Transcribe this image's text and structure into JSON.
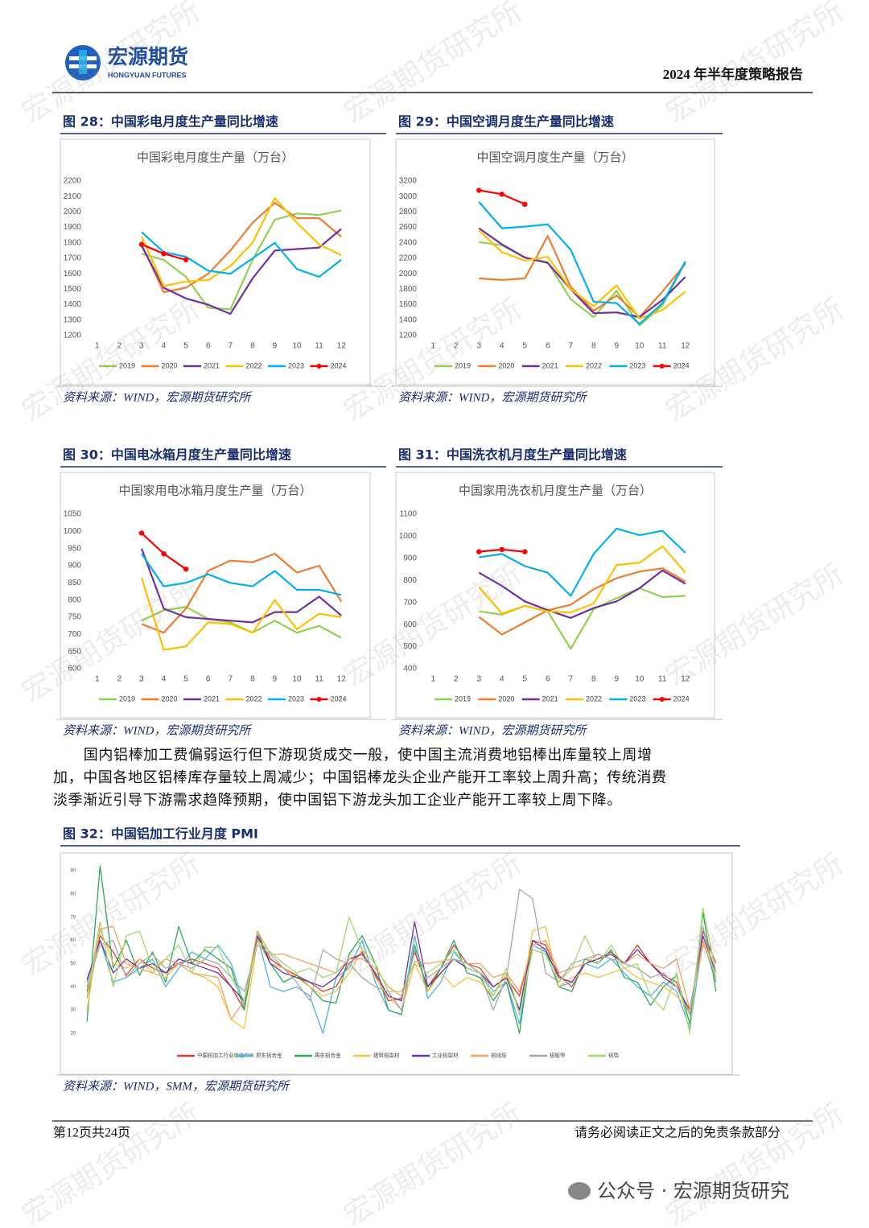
{
  "header": {
    "logo_text": "宏源期货",
    "logo_sub": "HONGYUAN FUTURES",
    "title": "2024 年半年度策略报告"
  },
  "watermark": "宏源期货研究所",
  "paragraph": "国内铝棒加工费偏弱运行但下游现货成交一般，使中国主流消费地铝棒出库量较上周增加，中国各地区铝棒库存量较上周减少；中国铝棒龙头企业产能开工率较上周升高；传统消费淡季渐近引导下游需求趋降预期，使中国铝下游龙头加工企业产能开工率较上周下降。",
  "footer": {
    "page": "第12页共24页",
    "disclaimer": "请务必阅读正文之后的免责条款部分",
    "wechat": "公众号 · 宏源期货研究"
  },
  "chart_data": [
    {
      "type": "line",
      "caption": "图 28：中国彩电月度生产量同比增速",
      "title": "中国彩电月度生产量（万台）",
      "source": "资料来源：WIND，宏源期货研究所",
      "categories": [
        "1",
        "2",
        "3",
        "4",
        "5",
        "6",
        "7",
        "8",
        "9",
        "10",
        "11",
        "12"
      ],
      "ylim": [
        1200,
        2200
      ],
      "yticks": [
        1200,
        1300,
        1400,
        1500,
        1600,
        1700,
        1800,
        1900,
        2000,
        2100,
        2200
      ],
      "series": [
        {
          "name": "2019",
          "color": "#92d050",
          "values": [
            null,
            null,
            1730,
            1690,
            1580,
            1380,
            1370,
            1690,
            1950,
            1990,
            1980,
            2010
          ]
        },
        {
          "name": "2020",
          "color": "#ed7d31",
          "values": [
            null,
            null,
            1790,
            1480,
            1510,
            1600,
            1750,
            1930,
            2060,
            1960,
            1960,
            1840
          ]
        },
        {
          "name": "2021",
          "color": "#7030a0",
          "values": [
            null,
            null,
            1780,
            1510,
            1440,
            1400,
            1340,
            1570,
            1750,
            1760,
            1770,
            1890
          ]
        },
        {
          "name": "2022",
          "color": "#ffc000",
          "values": [
            null,
            null,
            1840,
            1520,
            1550,
            1560,
            1650,
            1800,
            2090,
            1930,
            1790,
            1720
          ]
        },
        {
          "name": "2023",
          "color": "#00b0f0",
          "values": [
            null,
            null,
            1870,
            1740,
            1710,
            1620,
            1600,
            1700,
            1800,
            1630,
            1580,
            1690
          ]
        },
        {
          "name": "2024",
          "color": "#ff0000",
          "marker": true,
          "values": [
            null,
            null,
            1790,
            1730,
            1690,
            null,
            null,
            null,
            null,
            null,
            null,
            null
          ]
        }
      ]
    },
    {
      "type": "line",
      "caption": "图 29：中国空调月度生产量同比增速",
      "title": "中国空调月度生产量（万台）",
      "source": "资料来源：WIND，宏源期货研究所",
      "categories": [
        "1",
        "2",
        "3",
        "4",
        "5",
        "6",
        "7",
        "8",
        "9",
        "10",
        "11",
        "12"
      ],
      "ylim": [
        1200,
        3200
      ],
      "yticks": [
        1200,
        1400,
        1600,
        1800,
        2000,
        2200,
        2400,
        2600,
        2800,
        3000,
        3200
      ],
      "series": [
        {
          "name": "2019",
          "color": "#92d050",
          "values": [
            null,
            null,
            2410,
            2370,
            2210,
            2150,
            1670,
            1440,
            1780,
            1330,
            1590,
            2150
          ]
        },
        {
          "name": "2020",
          "color": "#ed7d31",
          "values": [
            null,
            null,
            1940,
            1920,
            1940,
            2490,
            1830,
            1520,
            1720,
            1440,
            1770,
            2130
          ]
        },
        {
          "name": "2021",
          "color": "#7030a0",
          "values": [
            null,
            null,
            2590,
            2380,
            2210,
            2140,
            1800,
            1490,
            1500,
            1440,
            1660,
            1960
          ]
        },
        {
          "name": "2022",
          "color": "#ffc000",
          "values": [
            null,
            null,
            2560,
            2280,
            2170,
            2220,
            1800,
            1580,
            1850,
            1420,
            1530,
            1770
          ]
        },
        {
          "name": "2023",
          "color": "#00b0f0",
          "values": [
            null,
            null,
            2930,
            2590,
            2610,
            2640,
            2310,
            1640,
            1620,
            1350,
            1620,
            2160
          ]
        },
        {
          "name": "2024",
          "color": "#ff0000",
          "marker": true,
          "values": [
            null,
            null,
            3080,
            3030,
            2900,
            null,
            null,
            null,
            null,
            null,
            null,
            null
          ]
        }
      ]
    },
    {
      "type": "line",
      "caption": "图 30：中国电冰箱月度生产量同比增速",
      "title": "中国家用电冰箱月度生产量（万台）",
      "source": "资料来源：WIND，宏源期货研究所",
      "categories": [
        "1",
        "2",
        "3",
        "4",
        "5",
        "6",
        "7",
        "8",
        "9",
        "10",
        "11",
        "12"
      ],
      "ylim": [
        600,
        1050
      ],
      "yticks": [
        600,
        650,
        700,
        750,
        800,
        850,
        900,
        950,
        1000,
        1050
      ],
      "series": [
        {
          "name": "2019",
          "color": "#92d050",
          "values": [
            null,
            null,
            740,
            770,
            780,
            745,
            735,
            705,
            740,
            705,
            725,
            690
          ]
        },
        {
          "name": "2020",
          "color": "#ed7d31",
          "values": [
            null,
            null,
            730,
            705,
            775,
            885,
            915,
            910,
            935,
            880,
            900,
            795
          ]
        },
        {
          "name": "2021",
          "color": "#7030a0",
          "values": [
            null,
            null,
            950,
            775,
            750,
            745,
            740,
            735,
            765,
            765,
            810,
            755
          ]
        },
        {
          "name": "2022",
          "color": "#ffc000",
          "values": [
            null,
            null,
            865,
            655,
            665,
            735,
            730,
            705,
            800,
            715,
            760,
            750
          ]
        },
        {
          "name": "2023",
          "color": "#00b0f0",
          "values": [
            null,
            null,
            935,
            840,
            850,
            875,
            850,
            840,
            885,
            830,
            830,
            815
          ]
        },
        {
          "name": "2024",
          "color": "#ff0000",
          "marker": true,
          "values": [
            null,
            null,
            995,
            935,
            890,
            null,
            null,
            null,
            null,
            null,
            null,
            null
          ]
        }
      ]
    },
    {
      "type": "line",
      "caption": "图 31：中国洗衣机月度生产量同比增速",
      "title": "中国家用洗衣机月度生产量（万台）",
      "source": "资料来源：WIND，宏源期货研究所",
      "categories": [
        "1",
        "2",
        "3",
        "4",
        "5",
        "6",
        "7",
        "8",
        "9",
        "10",
        "11",
        "12"
      ],
      "ylim": [
        400,
        1100
      ],
      "yticks": [
        400,
        500,
        600,
        700,
        800,
        900,
        1000,
        1100
      ],
      "series": [
        {
          "name": "2019",
          "color": "#92d050",
          "values": [
            null,
            null,
            660,
            645,
            685,
            660,
            490,
            670,
            720,
            765,
            725,
            730
          ]
        },
        {
          "name": "2020",
          "color": "#ed7d31",
          "values": [
            null,
            null,
            635,
            555,
            610,
            665,
            690,
            760,
            810,
            840,
            855,
            795
          ]
        },
        {
          "name": "2021",
          "color": "#7030a0",
          "values": [
            null,
            null,
            835,
            775,
            705,
            665,
            630,
            675,
            705,
            765,
            845,
            785
          ]
        },
        {
          "name": "2022",
          "color": "#ffc000",
          "values": [
            null,
            null,
            770,
            650,
            685,
            660,
            655,
            695,
            870,
            880,
            955,
            835
          ]
        },
        {
          "name": "2023",
          "color": "#00b0f0",
          "values": [
            null,
            null,
            905,
            920,
            865,
            835,
            730,
            920,
            1035,
            1005,
            1025,
            925
          ]
        },
        {
          "name": "2024",
          "color": "#ff0000",
          "marker": true,
          "values": [
            null,
            null,
            930,
            940,
            930,
            null,
            null,
            null,
            null,
            null,
            null,
            null
          ]
        }
      ]
    },
    {
      "type": "line",
      "caption": "图 32：中国铝加工行业月度 PMI",
      "source": "资料来源：WIND，SMM，宏源期货研究所",
      "categories": [
        null,
        null,
        null,
        null,
        null,
        null,
        null,
        null,
        null,
        null,
        null,
        null,
        null,
        null,
        null,
        null,
        null,
        null,
        null,
        null,
        null,
        null,
        null,
        null,
        null,
        null,
        null,
        null,
        null,
        null,
        null,
        null,
        null,
        null,
        null,
        null,
        null,
        null,
        null,
        null,
        null,
        null,
        null,
        null,
        null,
        null,
        null,
        null,
        null
      ],
      "ylim": [
        20,
        90
      ],
      "yticks": [
        20,
        30,
        40,
        50,
        60,
        70,
        80,
        90
      ],
      "series": [
        {
          "name": "中国铝加工行业综合PMI",
          "color": "#e03c31",
          "values": [
            38,
            62,
            55,
            45,
            52,
            48,
            46,
            50,
            52,
            50,
            48,
            40,
            30,
            62,
            52,
            48,
            45,
            42,
            38,
            40,
            50,
            55,
            45,
            34,
            35,
            55,
            40,
            48,
            58,
            50,
            48,
            40,
            44,
            36,
            60,
            58,
            45,
            40,
            50,
            52,
            55,
            50,
            58,
            50,
            45,
            42,
            28,
            64,
            50
          ]
        },
        {
          "name": "原生铝合金",
          "color": "#4fb3e8",
          "values": [
            42,
            60,
            42,
            44,
            48,
            52,
            40,
            48,
            55,
            52,
            58,
            50,
            32,
            62,
            40,
            38,
            40,
            36,
            20,
            44,
            48,
            60,
            42,
            30,
            28,
            62,
            35,
            42,
            55,
            48,
            46,
            38,
            42,
            24,
            58,
            55,
            40,
            42,
            50,
            48,
            52,
            46,
            40,
            36,
            42,
            38,
            22,
            60,
            42
          ]
        },
        {
          "name": "再生铝合金",
          "color": "#2eaa5c",
          "values": [
            25,
            92,
            48,
            60,
            45,
            55,
            42,
            66,
            50,
            56,
            52,
            48,
            30,
            64,
            50,
            42,
            45,
            40,
            34,
            33,
            54,
            62,
            50,
            30,
            28,
            58,
            38,
            48,
            60,
            46,
            44,
            34,
            42,
            20,
            60,
            56,
            40,
            38,
            52,
            50,
            56,
            44,
            42,
            32,
            40,
            45,
            24,
            72,
            38
          ]
        },
        {
          "name": "建筑铝型材",
          "color": "#f5c342",
          "values": [
            30,
            65,
            50,
            48,
            52,
            46,
            44,
            50,
            46,
            44,
            40,
            26,
            22,
            60,
            50,
            48,
            44,
            40,
            36,
            38,
            46,
            56,
            44,
            36,
            30,
            50,
            38,
            46,
            40,
            44,
            42,
            36,
            46,
            30,
            64,
            66,
            40,
            44,
            46,
            44,
            46,
            48,
            44,
            42,
            40,
            36,
            30,
            60,
            44
          ]
        },
        {
          "name": "工业铝型材",
          "color": "#7030a0",
          "values": [
            43,
            60,
            46,
            52,
            48,
            50,
            46,
            52,
            50,
            48,
            46,
            40,
            34,
            62,
            50,
            46,
            44,
            42,
            40,
            44,
            52,
            54,
            46,
            36,
            34,
            68,
            40,
            46,
            52,
            48,
            46,
            40,
            44,
            30,
            60,
            56,
            44,
            42,
            50,
            52,
            54,
            50,
            56,
            50,
            44,
            40,
            30,
            62,
            46
          ]
        },
        {
          "name": "铝线缆",
          "color": "#f4a261",
          "values": [
            35,
            65,
            66,
            50,
            48,
            46,
            52,
            50,
            46,
            45,
            44,
            26,
            34,
            64,
            54,
            54,
            52,
            50,
            48,
            46,
            52,
            52,
            48,
            40,
            36,
            51,
            50,
            51,
            52,
            50,
            50,
            44,
            46,
            38,
            58,
            60,
            46,
            48,
            50,
            54,
            52,
            50,
            54,
            50,
            48,
            52,
            30,
            58,
            50
          ]
        },
        {
          "name": "铝板带",
          "color": "#a8a8a8",
          "values": [
            40,
            58,
            60,
            44,
            50,
            54,
            48,
            50,
            48,
            52,
            50,
            44,
            38,
            58,
            54,
            48,
            42,
            34,
            56,
            52,
            50,
            44,
            40,
            38,
            30,
            56,
            44,
            48,
            52,
            50,
            46,
            30,
            44,
            82,
            78,
            46,
            42,
            50,
            52,
            54,
            52,
            50,
            48,
            44,
            46,
            40,
            28,
            66,
            42
          ]
        },
        {
          "name": "铝箔",
          "color": "#a6d86e",
          "values": [
            36,
            68,
            40,
            62,
            64,
            48,
            52,
            58,
            46,
            57,
            57,
            44,
            34,
            60,
            55,
            50,
            46,
            48,
            44,
            46,
            70,
            56,
            50,
            38,
            38,
            50,
            46,
            50,
            56,
            48,
            46,
            36,
            48,
            28,
            56,
            54,
            42,
            48,
            62,
            50,
            58,
            48,
            50,
            36,
            30,
            46,
            20,
            74,
            46
          ]
        }
      ]
    }
  ]
}
